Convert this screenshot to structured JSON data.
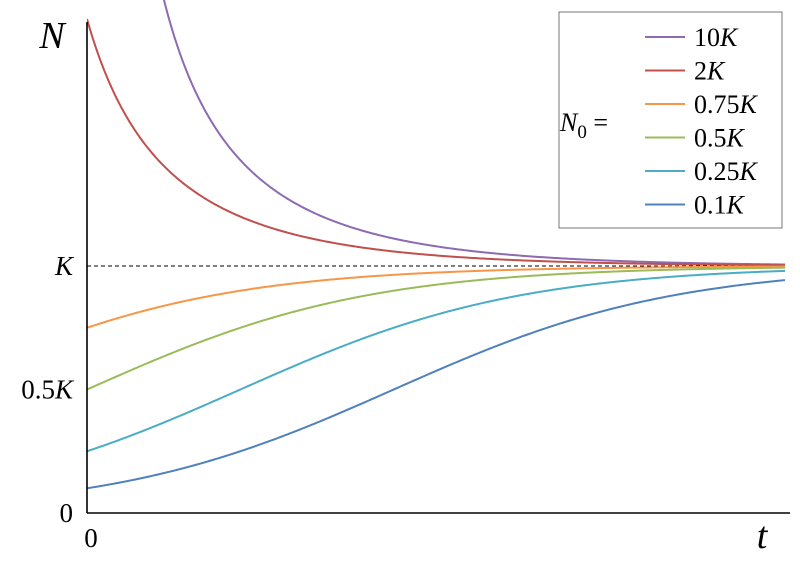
{
  "chart_data": {
    "type": "line",
    "xlabel": "t",
    "ylabel": "N",
    "xlim": [
      0,
      10
    ],
    "ylim": [
      0,
      2
    ],
    "x_ticks": [
      {
        "value": 0,
        "label": "0"
      }
    ],
    "y_ticks": [
      {
        "value": 0,
        "label": "0"
      },
      {
        "value": 0.5,
        "label": "0.5K"
      },
      {
        "value": 1,
        "label": "K"
      }
    ],
    "reference_lines": [
      {
        "y": 1,
        "style": "dashed",
        "label": "K"
      }
    ],
    "growth_rate": 0.5,
    "legend": {
      "title": "N0 =",
      "position": "top-right"
    },
    "series": [
      {
        "name": "10K",
        "N0": 10,
        "color": "#8e6bb0"
      },
      {
        "name": "2K",
        "N0": 2,
        "color": "#c0504d"
      },
      {
        "name": "0.75K",
        "N0": 0.75,
        "color": "#f79646"
      },
      {
        "name": "0.5K",
        "N0": 0.5,
        "color": "#9bbb59"
      },
      {
        "name": "0.25K",
        "N0": 0.25,
        "color": "#4bacc6"
      },
      {
        "name": "0.1K",
        "N0": 0.1,
        "color": "#4f81bd"
      }
    ]
  }
}
